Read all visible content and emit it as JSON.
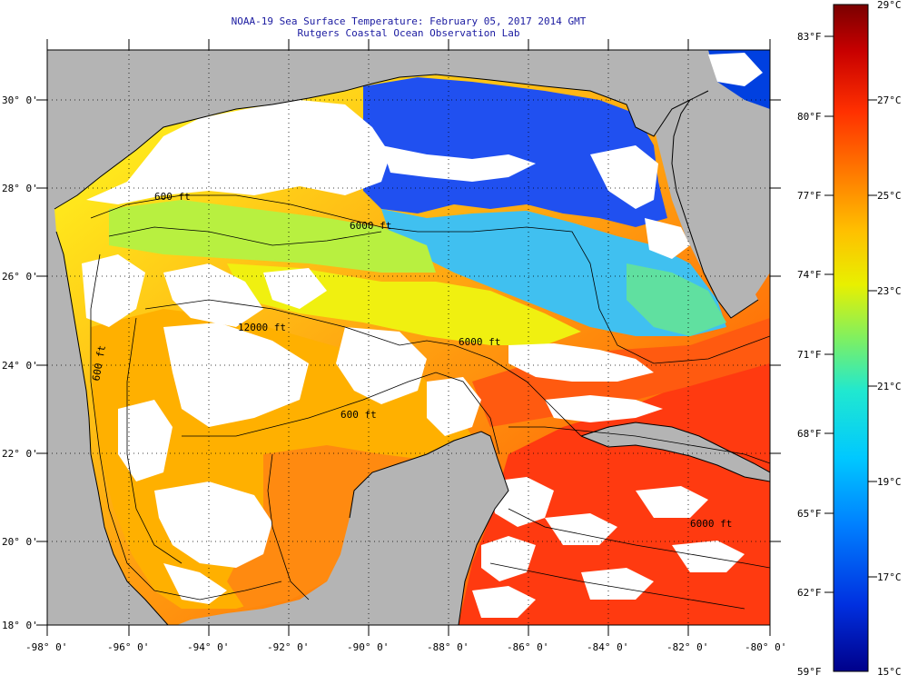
{
  "header": {
    "title_line1": "NOAA-19 Sea Surface Temperature:  February 05, 2017 2014 GMT",
    "title_line2": "Rutgers Coastal Ocean Observation Lab"
  },
  "map": {
    "lat_labels": [
      "30° 0'",
      "28° 0'",
      "26° 0'",
      "24° 0'",
      "22° 0'",
      "20° 0'",
      "18° 0'"
    ],
    "lon_labels": [
      "-98° 0'",
      "-96° 0'",
      "-94° 0'",
      "-92° 0'",
      "-90° 0'",
      "-88° 0'",
      "-86° 0'",
      "-84° 0'",
      "-82° 0'",
      "-80° 0'"
    ],
    "contour_labels": [
      "600 ft",
      "6000 ft",
      "12000 ft",
      "6000 ft",
      "600 ft",
      "600 ft",
      "6000 ft"
    ],
    "colors": {
      "land": "#b4b4b4",
      "cloud": "#ffffff",
      "border": "#000000"
    }
  },
  "colorbar": {
    "celsius_labels": [
      "29°C",
      "27°C",
      "25°C",
      "23°C",
      "21°C",
      "19°C",
      "17°C",
      "15°C"
    ],
    "fahrenheit_labels": [
      "83°F",
      "80°F",
      "77°F",
      "74°F",
      "71°F",
      "68°F",
      "65°F",
      "62°F",
      "59°F"
    ],
    "colors": [
      "#00008a",
      "#0020d0",
      "#0060ff",
      "#00a8ff",
      "#00e0f0",
      "#40f0a0",
      "#a0f040",
      "#f0f000",
      "#ffc000",
      "#ff8000",
      "#ff4000",
      "#e01000",
      "#a00000",
      "#7a0000"
    ]
  }
}
